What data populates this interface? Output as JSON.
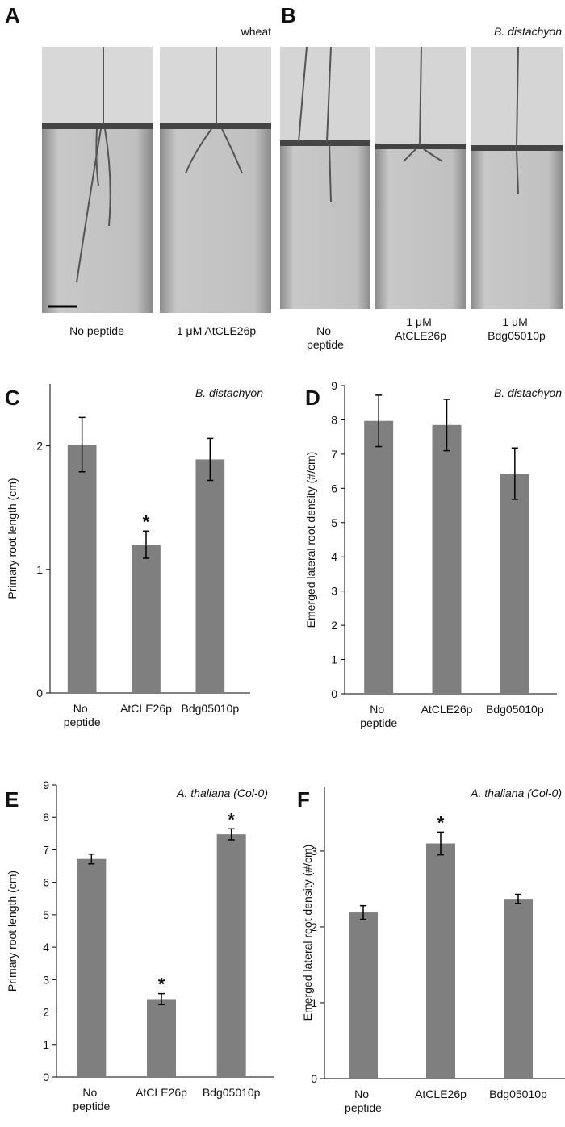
{
  "panels": [
    {
      "letter": "A",
      "species": "wheat",
      "labels": [
        "No peptide",
        "1 μM AtCLE26p"
      ]
    },
    {
      "letter": "B",
      "species": "B. distachyon",
      "labels": [
        "No peptide",
        "1 μM AtCLE26p",
        "1 μM Bdg05010p"
      ]
    }
  ],
  "chart_data": [
    {
      "type": "bar",
      "panel": "C",
      "annotation": "B. distachyon",
      "y_label": "Primary root length (cm)",
      "categories": [
        "No peptide",
        "AtCLE26p",
        "Bdg05010p"
      ],
      "values": [
        2.01,
        1.2,
        1.89
      ],
      "errors": [
        0.22,
        0.11,
        0.17
      ],
      "value_annotations": [
        null,
        "*",
        null
      ],
      "color": "#7f7f7f",
      "ylim": [
        0,
        2.5
      ],
      "yticks": [
        0,
        1,
        2
      ]
    },
    {
      "type": "bar",
      "panel": "D",
      "annotation": "B. distachyon",
      "y_label": "Emerged lateral root density (#/cm)",
      "categories": [
        "No peptide",
        "AtCLE26p",
        "Bdg05010p"
      ],
      "values": [
        7.97,
        7.85,
        6.43
      ],
      "errors": [
        0.75,
        0.75,
        0.75
      ],
      "value_annotations": [
        null,
        null,
        null
      ],
      "color": "#7f7f7f",
      "ylim": [
        0,
        9
      ],
      "yticks": [
        0,
        1,
        2,
        3,
        4,
        5,
        6,
        7,
        8,
        9
      ]
    },
    {
      "type": "bar",
      "panel": "E",
      "annotation": "A. thaliana (Col-0)",
      "y_label": "Primary root length (cm)",
      "categories": [
        "No peptide",
        "AtCLE26p",
        "Bdg05010p"
      ],
      "values": [
        6.72,
        2.4,
        7.48
      ],
      "errors": [
        0.15,
        0.17,
        0.17
      ],
      "value_annotations": [
        null,
        "*",
        "*"
      ],
      "color": "#7f7f7f",
      "ylim": [
        0,
        9
      ],
      "yticks": [
        0,
        1,
        2,
        3,
        4,
        5,
        6,
        7,
        8,
        9
      ]
    },
    {
      "type": "bar",
      "panel": "F",
      "annotation": "A. thaliana (Col-0)",
      "y_label": "Emerged lateral root density (#/cm)",
      "categories": [
        "No peptide",
        "AtCLE26p",
        "Bdg05010p"
      ],
      "values": [
        2.19,
        3.1,
        2.37
      ],
      "errors": [
        0.09,
        0.15,
        0.06
      ],
      "value_annotations": [
        null,
        "*",
        null
      ],
      "color": "#7f7f7f",
      "ylim": [
        0,
        3.85
      ],
      "yticks": [
        0,
        1,
        2,
        3
      ]
    }
  ]
}
